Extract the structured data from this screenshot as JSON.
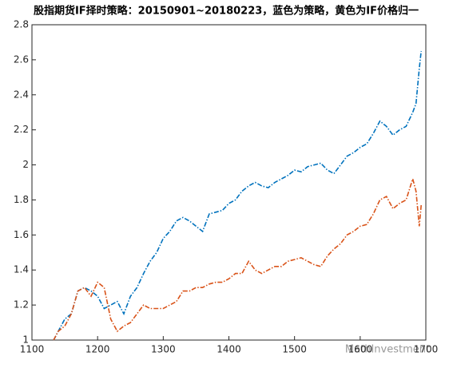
{
  "chart_data": {
    "type": "line",
    "title": "股指期货IF择时策略：20150901~20180223，蓝色为策略，黄色为IF价格归一",
    "watermark": "MathInvestment",
    "x": [
      1133,
      1140,
      1150,
      1160,
      1170,
      1180,
      1190,
      1200,
      1210,
      1220,
      1230,
      1240,
      1250,
      1260,
      1270,
      1280,
      1290,
      1300,
      1310,
      1320,
      1330,
      1340,
      1350,
      1360,
      1370,
      1380,
      1390,
      1400,
      1410,
      1420,
      1430,
      1440,
      1450,
      1460,
      1470,
      1480,
      1490,
      1500,
      1510,
      1520,
      1530,
      1540,
      1550,
      1560,
      1570,
      1580,
      1590,
      1600,
      1610,
      1620,
      1630,
      1640,
      1650,
      1660,
      1670,
      1680,
      1685,
      1690,
      1693
    ],
    "series": [
      {
        "color": "#0072bd",
        "values": [
          1.0,
          1.05,
          1.12,
          1.15,
          1.28,
          1.3,
          1.28,
          1.25,
          1.18,
          1.2,
          1.22,
          1.15,
          1.25,
          1.3,
          1.38,
          1.45,
          1.5,
          1.58,
          1.62,
          1.68,
          1.7,
          1.68,
          1.65,
          1.62,
          1.72,
          1.73,
          1.74,
          1.78,
          1.8,
          1.85,
          1.88,
          1.9,
          1.88,
          1.87,
          1.9,
          1.92,
          1.94,
          1.97,
          1.96,
          1.99,
          2.0,
          2.01,
          1.97,
          1.95,
          2.0,
          2.05,
          2.07,
          2.1,
          2.12,
          2.18,
          2.25,
          2.22,
          2.17,
          2.2,
          2.22,
          2.3,
          2.35,
          2.55,
          2.65
        ]
      },
      {
        "color": "#d95319",
        "values": [
          1.0,
          1.05,
          1.08,
          1.15,
          1.28,
          1.3,
          1.25,
          1.33,
          1.3,
          1.12,
          1.05,
          1.08,
          1.1,
          1.15,
          1.2,
          1.18,
          1.18,
          1.18,
          1.2,
          1.22,
          1.28,
          1.28,
          1.3,
          1.3,
          1.32,
          1.33,
          1.33,
          1.35,
          1.38,
          1.38,
          1.45,
          1.4,
          1.38,
          1.4,
          1.42,
          1.42,
          1.45,
          1.46,
          1.47,
          1.45,
          1.43,
          1.42,
          1.48,
          1.52,
          1.55,
          1.6,
          1.62,
          1.65,
          1.66,
          1.72,
          1.8,
          1.82,
          1.75,
          1.78,
          1.8,
          1.92,
          1.85,
          1.65,
          1.77
        ]
      }
    ],
    "xlim": [
      1100,
      1700
    ],
    "xticks": [
      1100,
      1200,
      1300,
      1400,
      1500,
      1600,
      1700
    ],
    "ylim": [
      1,
      2.8
    ],
    "yticks": [
      1,
      1.2,
      1.4,
      1.6,
      1.8,
      2,
      2.2,
      2.4,
      2.6,
      2.8
    ]
  }
}
